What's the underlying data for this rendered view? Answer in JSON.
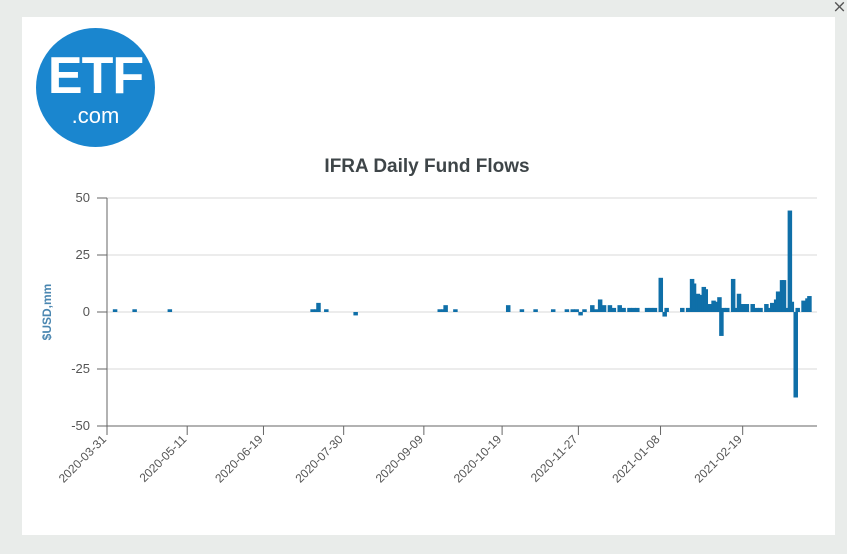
{
  "window": {
    "close_glyph": "×"
  },
  "logo": {
    "main": "ETF",
    "sub": ".com",
    "icon": "etf-com-logo",
    "color": "#1a86cf"
  },
  "chart_data": {
    "type": "bar",
    "title": "IFRA Daily Fund Flows",
    "ylabel": "$USD,mm",
    "xlabel": "",
    "ylim": [
      -50,
      50
    ],
    "yticks": [
      50,
      25,
      0,
      -25,
      -50
    ],
    "ytick_labels": [
      "50",
      "25",
      "0",
      "-25",
      "-50"
    ],
    "xlim": [
      "2020-03-31",
      "2021-03-29"
    ],
    "xticks": [
      "2020-03-31",
      "2020-05-11",
      "2020-06-19",
      "2020-07-30",
      "2020-09-09",
      "2020-10-19",
      "2020-11-27",
      "2021-01-08",
      "2021-02-19"
    ],
    "grid": true,
    "bar_color": "#0f6fa8",
    "series": [
      {
        "points": [
          {
            "date": "2020-04-04",
            "value": 1.2
          },
          {
            "date": "2020-04-14",
            "value": 1.2
          },
          {
            "date": "2020-05-02",
            "value": 1.2
          },
          {
            "date": "2020-07-14",
            "value": 1.2
          },
          {
            "date": "2020-07-16",
            "value": 1.2
          },
          {
            "date": "2020-07-17",
            "value": 4.0
          },
          {
            "date": "2020-07-21",
            "value": 1.2
          },
          {
            "date": "2020-08-05",
            "value": -1.5
          },
          {
            "date": "2020-09-17",
            "value": 1.2
          },
          {
            "date": "2020-09-19",
            "value": 1.2
          },
          {
            "date": "2020-09-20",
            "value": 3.0
          },
          {
            "date": "2020-09-25",
            "value": 1.2
          },
          {
            "date": "2020-10-22",
            "value": 3.0
          },
          {
            "date": "2020-10-29",
            "value": 1.2
          },
          {
            "date": "2020-11-05",
            "value": 1.2
          },
          {
            "date": "2020-11-14",
            "value": 1.2
          },
          {
            "date": "2020-11-21",
            "value": 1.2
          },
          {
            "date": "2020-11-24",
            "value": 1.2
          },
          {
            "date": "2020-11-26",
            "value": 1.2
          },
          {
            "date": "2020-11-28",
            "value": -1.5
          },
          {
            "date": "2020-11-30",
            "value": 1.2
          },
          {
            "date": "2020-12-04",
            "value": 3.0
          },
          {
            "date": "2020-12-06",
            "value": 1.2
          },
          {
            "date": "2020-12-08",
            "value": 5.5
          },
          {
            "date": "2020-12-10",
            "value": 3.0
          },
          {
            "date": "2020-12-13",
            "value": 3.0
          },
          {
            "date": "2020-12-15",
            "value": 1.8
          },
          {
            "date": "2020-12-18",
            "value": 3.0
          },
          {
            "date": "2020-12-20",
            "value": 1.8
          },
          {
            "date": "2020-12-23",
            "value": 1.8
          },
          {
            "date": "2020-12-25",
            "value": 1.8
          },
          {
            "date": "2020-12-27",
            "value": 1.8
          },
          {
            "date": "2021-01-01",
            "value": 1.8
          },
          {
            "date": "2021-01-03",
            "value": 1.8
          },
          {
            "date": "2021-01-05",
            "value": 1.8
          },
          {
            "date": "2021-01-08",
            "value": 15.0
          },
          {
            "date": "2021-01-10",
            "value": -2.0
          },
          {
            "date": "2021-01-11",
            "value": 1.8
          },
          {
            "date": "2021-01-19",
            "value": 1.8
          },
          {
            "date": "2021-01-22",
            "value": 1.8
          },
          {
            "date": "2021-01-24",
            "value": 14.5
          },
          {
            "date": "2021-01-25",
            "value": 12.5
          },
          {
            "date": "2021-01-27",
            "value": 8.0
          },
          {
            "date": "2021-01-28",
            "value": 7.5
          },
          {
            "date": "2021-01-30",
            "value": 11.0
          },
          {
            "date": "2021-01-31",
            "value": 10.0
          },
          {
            "date": "2021-02-01",
            "value": 1.8
          },
          {
            "date": "2021-02-02",
            "value": 3.5
          },
          {
            "date": "2021-02-04",
            "value": 5.0
          },
          {
            "date": "2021-02-05",
            "value": 4.5
          },
          {
            "date": "2021-02-07",
            "value": 6.5
          },
          {
            "date": "2021-02-08",
            "value": -10.5
          },
          {
            "date": "2021-02-09",
            "value": 1.8
          },
          {
            "date": "2021-02-11",
            "value": 1.8
          },
          {
            "date": "2021-02-14",
            "value": 14.5
          },
          {
            "date": "2021-02-15",
            "value": 1.8
          },
          {
            "date": "2021-02-17",
            "value": 8.0
          },
          {
            "date": "2021-02-18",
            "value": 1.8
          },
          {
            "date": "2021-02-19",
            "value": 3.5
          },
          {
            "date": "2021-02-21",
            "value": 3.5
          },
          {
            "date": "2021-02-24",
            "value": 3.5
          },
          {
            "date": "2021-02-26",
            "value": 1.8
          },
          {
            "date": "2021-02-28",
            "value": 1.8
          },
          {
            "date": "2021-03-03",
            "value": 3.5
          },
          {
            "date": "2021-03-05",
            "value": 1.8
          },
          {
            "date": "2021-03-06",
            "value": 4.0
          },
          {
            "date": "2021-03-08",
            "value": 5.5
          },
          {
            "date": "2021-03-09",
            "value": 9.0
          },
          {
            "date": "2021-03-11",
            "value": 14.0
          },
          {
            "date": "2021-03-12",
            "value": 14.0
          },
          {
            "date": "2021-03-14",
            "value": 1.8
          },
          {
            "date": "2021-03-15",
            "value": 44.5
          },
          {
            "date": "2021-03-16",
            "value": 4.5
          },
          {
            "date": "2021-03-18",
            "value": -37.5
          },
          {
            "date": "2021-03-19",
            "value": 1.8
          },
          {
            "date": "2021-03-22",
            "value": 5.0
          },
          {
            "date": "2021-03-24",
            "value": 6.0
          },
          {
            "date": "2021-03-25",
            "value": 7.0
          }
        ]
      }
    ]
  }
}
